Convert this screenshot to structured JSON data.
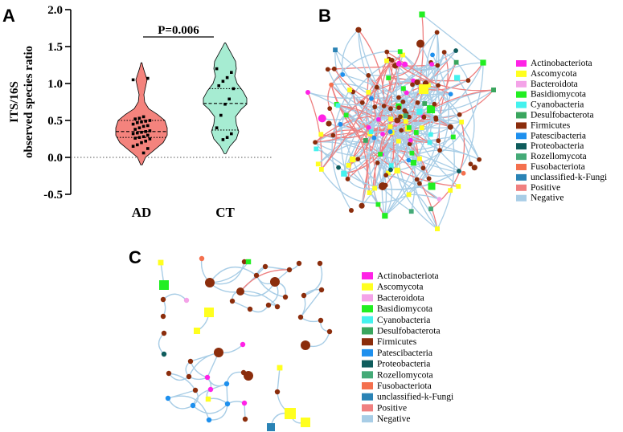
{
  "panels": {
    "a": "A",
    "b": "B",
    "c": "C"
  },
  "chart_data": [
    {
      "type": "violin",
      "ylabel_line1": "ITS/16S",
      "ylabel_line2": "observed species ratio",
      "xlabel": "",
      "categories": [
        "AD",
        "CT"
      ],
      "ylim": [
        -0.5,
        2.0
      ],
      "yticks": [
        "-0.5",
        "0.0",
        "0.5",
        "1.0",
        "1.5",
        "2.0"
      ],
      "annotation": "P=0.006",
      "reference_line": 0.0,
      "colors": {
        "AD": "#f4837d",
        "CT": "#a6ecd2"
      },
      "series": [
        {
          "name": "AD",
          "quartiles": [
            0.27,
            0.35,
            0.5
          ],
          "range": [
            -0.1,
            1.28
          ],
          "values": [
            1.05,
            1.07,
            0.55,
            0.53,
            0.52,
            0.5,
            0.49,
            0.48,
            0.47,
            0.45,
            0.43,
            0.42,
            0.4,
            0.38,
            0.36,
            0.35,
            0.34,
            0.33,
            0.32,
            0.3,
            0.28,
            0.27,
            0.26,
            0.25,
            0.22,
            0.2,
            0.17,
            0.15,
            0.12,
            0.06
          ]
        },
        {
          "name": "CT",
          "quartiles": [
            0.37,
            0.73,
            0.93
          ],
          "range": [
            0.05,
            1.55
          ],
          "values": [
            1.2,
            1.15,
            1.08,
            1.03,
            0.97,
            0.93,
            0.79,
            0.72,
            0.57,
            0.4,
            0.32,
            0.27,
            0.24
          ]
        }
      ]
    }
  ],
  "legend_items": [
    {
      "label": "Actinobacteriota",
      "color": "#ff22e6"
    },
    {
      "label": "Ascomycota",
      "color": "#ffff1f"
    },
    {
      "label": "Bacteroidota",
      "color": "#f4a3e8"
    },
    {
      "label": "Basidiomycota",
      "color": "#22ee22"
    },
    {
      "label": "Cyanobacteria",
      "color": "#44f2ee"
    },
    {
      "label": "Desulfobacterota",
      "color": "#3aa65e"
    },
    {
      "label": "Firmicutes",
      "color": "#8b2d0c"
    },
    {
      "label": "Patescibacteria",
      "color": "#1e90ee"
    },
    {
      "label": "Proteobacteria",
      "color": "#0e5c5c"
    },
    {
      "label": "Rozellomycota",
      "color": "#44aa77"
    },
    {
      "label": "Fusobacteriota",
      "color": "#f4704e"
    },
    {
      "label": "unclassified-k-Fungi",
      "color": "#2a83b5"
    },
    {
      "label": "Positive",
      "color": "#f08080"
    },
    {
      "label": "Negative",
      "color": "#a8cde6"
    }
  ],
  "colors": {
    "edge_positive": "#ee7f7f",
    "edge_negative": "#a8cde6"
  }
}
